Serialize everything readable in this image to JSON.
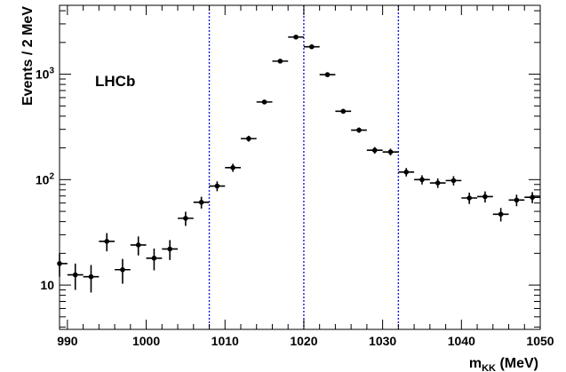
{
  "chart_data": {
    "type": "scatter",
    "experiment_label": "LHCb",
    "xlabel_main": "m",
    "xlabel_sub": "KK",
    "xlabel_unit": "(MeV)",
    "ylabel": "Events / 2 MeV",
    "xlim": [
      989,
      1050
    ],
    "ylim": [
      3.8,
      4500
    ],
    "yscale": "log",
    "x_ticks": [
      {
        "value": 990,
        "label": "990"
      },
      {
        "value": 1000,
        "label": "1000"
      },
      {
        "value": 1010,
        "label": "1010"
      },
      {
        "value": 1020,
        "label": "1020"
      },
      {
        "value": 1030,
        "label": "1030"
      },
      {
        "value": 1040,
        "label": "1040"
      },
      {
        "value": 1050,
        "label": "1050"
      }
    ],
    "y_ticks": [
      {
        "value": 10,
        "base": "10",
        "exp": ""
      },
      {
        "value": 100,
        "base": "10",
        "exp": "2"
      },
      {
        "value": 1000,
        "base": "10",
        "exp": "3"
      }
    ],
    "vertical_lines": [
      1008,
      1020,
      1032
    ],
    "vertical_line_color": "#1a1adc",
    "bin_width": 2,
    "series": [
      {
        "marker_color": "#000000",
        "points": [
          {
            "x": 989,
            "y": 16,
            "err": 4.0
          },
          {
            "x": 991,
            "y": 12.5,
            "err": 3.5
          },
          {
            "x": 993,
            "y": 12,
            "err": 3.5
          },
          {
            "x": 995,
            "y": 26,
            "err": 5.1
          },
          {
            "x": 997,
            "y": 14,
            "err": 3.7
          },
          {
            "x": 999,
            "y": 24,
            "err": 4.9
          },
          {
            "x": 1001,
            "y": 18,
            "err": 4.2
          },
          {
            "x": 1003,
            "y": 22,
            "err": 4.7
          },
          {
            "x": 1005,
            "y": 43,
            "err": 6.6
          },
          {
            "x": 1007,
            "y": 61,
            "err": 7.8
          },
          {
            "x": 1009,
            "y": 87,
            "err": 9.3
          },
          {
            "x": 1011,
            "y": 130,
            "err": 11.4
          },
          {
            "x": 1013,
            "y": 245,
            "err": 15.7
          },
          {
            "x": 1015,
            "y": 545,
            "err": 23.3
          },
          {
            "x": 1017,
            "y": 1330,
            "err": 36.5
          },
          {
            "x": 1019,
            "y": 2250,
            "err": 47.4
          },
          {
            "x": 1021,
            "y": 1820,
            "err": 42.7
          },
          {
            "x": 1023,
            "y": 990,
            "err": 31.5
          },
          {
            "x": 1025,
            "y": 445,
            "err": 21.1
          },
          {
            "x": 1027,
            "y": 295,
            "err": 17.2
          },
          {
            "x": 1029,
            "y": 190,
            "err": 13.8
          },
          {
            "x": 1031,
            "y": 183,
            "err": 13.5
          },
          {
            "x": 1033,
            "y": 118,
            "err": 10.9
          },
          {
            "x": 1035,
            "y": 100,
            "err": 10.0
          },
          {
            "x": 1037,
            "y": 93,
            "err": 9.6
          },
          {
            "x": 1039,
            "y": 98,
            "err": 9.9
          },
          {
            "x": 1041,
            "y": 67,
            "err": 8.2
          },
          {
            "x": 1043,
            "y": 69,
            "err": 8.3
          },
          {
            "x": 1045,
            "y": 47,
            "err": 6.9
          },
          {
            "x": 1047,
            "y": 64,
            "err": 8.0
          },
          {
            "x": 1049,
            "y": 68,
            "err": 8.2
          }
        ]
      }
    ]
  }
}
